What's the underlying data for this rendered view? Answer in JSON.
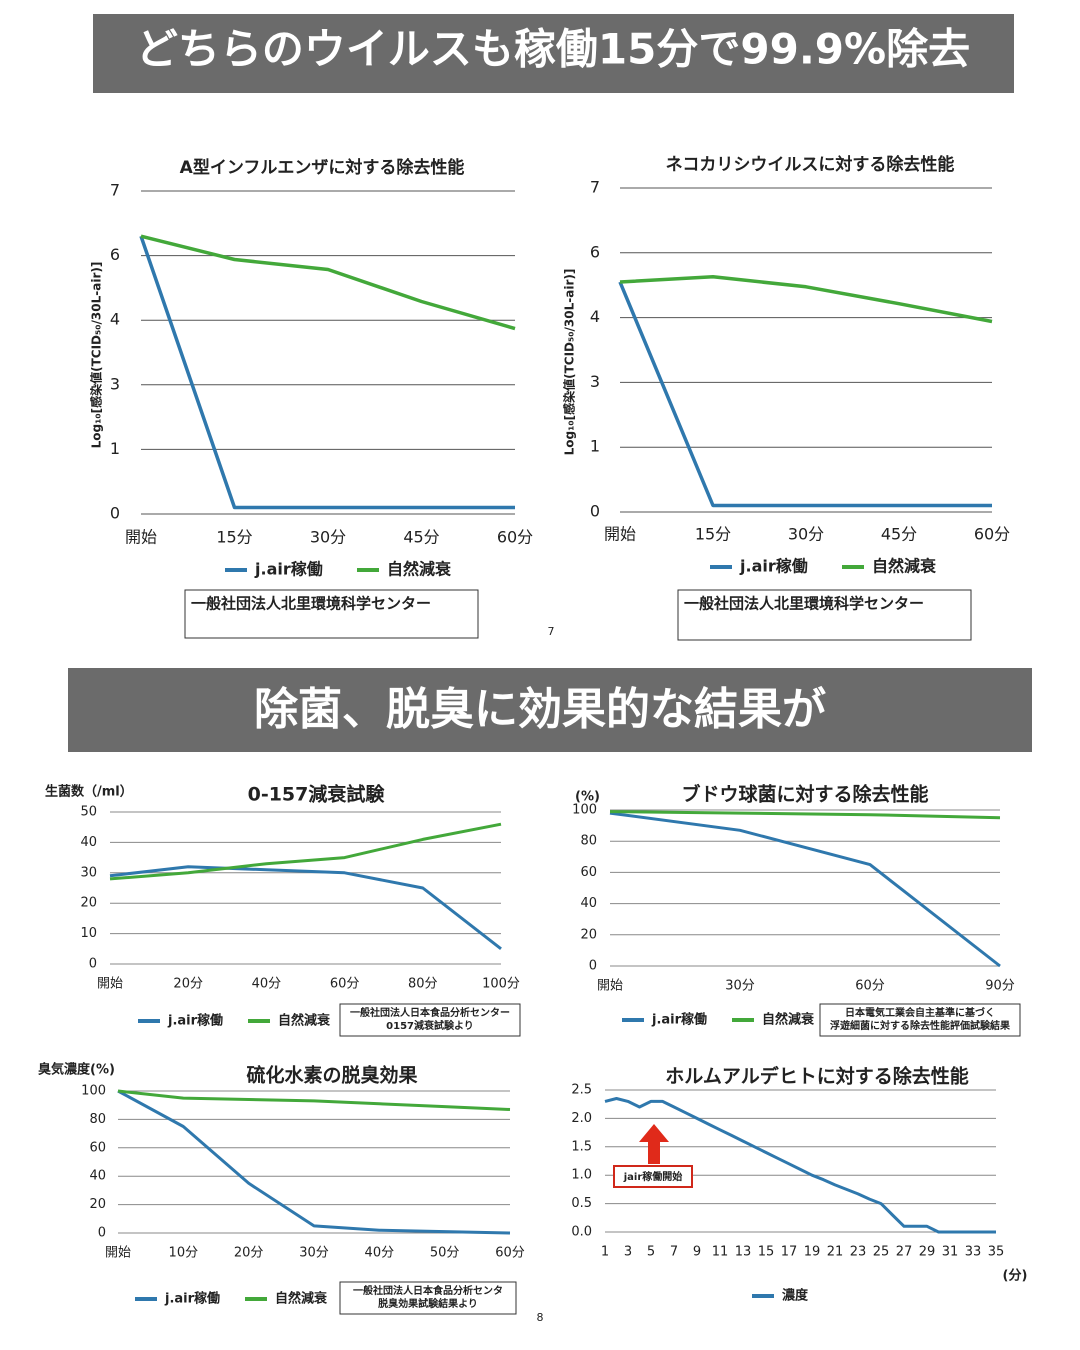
{
  "headers": [
    "どちらのウイルスも稼働15分で99.9%除去",
    "除菌、脱臭に効果的な結果が"
  ],
  "page_numbers": [
    "7",
    "8"
  ],
  "chart_data": [
    {
      "type": "line",
      "title": "A型インフルエンザに対する除去性能",
      "y_label": "Log₁₀[感染値(TCID₅₀/30L-air)]",
      "categories": [
        "開始",
        "15分",
        "30分",
        "45分",
        "60分"
      ],
      "series": [
        {
          "name": "j.air稼働",
          "color": "#2f78ad",
          "values": [
            6.3,
            0.1,
            0.1,
            0.1,
            0.1
          ]
        },
        {
          "name": "自然減衰",
          "color": "#43a83a",
          "values": [
            6.3,
            5.88,
            5.57,
            4.58,
            3.87
          ]
        }
      ],
      "ylim": [
        0,
        7
      ],
      "yticks": [
        0,
        1,
        3,
        4,
        6,
        7
      ],
      "grid": true,
      "legend": "bottom",
      "source": [
        "一般社団法人北里環境科学センター"
      ]
    },
    {
      "type": "line",
      "title": "ネコカリシウイルスに対する除去性能",
      "y_label": "Log₁₀[感染値(TCID₅₀/30L-air)]",
      "categories": [
        "開始",
        "15分",
        "30分",
        "45分",
        "60分"
      ],
      "series": [
        {
          "name": "j.air稼働",
          "color": "#2f78ad",
          "values": [
            5.1,
            0.1,
            0.1,
            0.1,
            0.1
          ]
        },
        {
          "name": "自然減衰",
          "color": "#43a83a",
          "values": [
            5.1,
            5.26,
            4.95,
            4.43,
            3.94
          ]
        }
      ],
      "ylim": [
        0,
        7
      ],
      "yticks": [
        0,
        1,
        3,
        4,
        6,
        7
      ],
      "grid": true,
      "legend": "bottom",
      "source": [
        "一般社団法人北里環境科学センター"
      ]
    },
    {
      "type": "line",
      "title": "0-157減衰試験",
      "y_label": "生菌数（/ml）",
      "categories": [
        "開始",
        "20分",
        "40分",
        "60分",
        "80分",
        "100分"
      ],
      "series": [
        {
          "name": "j.air稼働",
          "color": "#2f78ad",
          "values": [
            29,
            32,
            31,
            30,
            25,
            5
          ]
        },
        {
          "name": "自然減衰",
          "color": "#43a83a",
          "values": [
            28,
            30,
            33,
            35,
            41,
            46
          ]
        }
      ],
      "ylim": [
        0,
        50
      ],
      "yticks": [
        0,
        10,
        20,
        30,
        40,
        50
      ],
      "grid": true,
      "legend": "bottom",
      "source": [
        "一般社団法人日本食品分析センター",
        "0157減衰試験より"
      ]
    },
    {
      "type": "line",
      "title": "ブドウ球菌に対する除去性能",
      "y_label": "(%)",
      "categories": [
        "開始",
        "30分",
        "60分",
        "90分"
      ],
      "series": [
        {
          "name": "j.air稼働",
          "color": "#2f78ad",
          "values": [
            98,
            87,
            65,
            0
          ]
        },
        {
          "name": "自然減衰",
          "color": "#43a83a",
          "values": [
            99,
            98,
            97,
            95
          ]
        }
      ],
      "ylim": [
        0,
        100
      ],
      "yticks": [
        0,
        20,
        40,
        60,
        80,
        100
      ],
      "grid": true,
      "legend": "bottom",
      "source": [
        "日本電気工業会自主基準に基づく",
        "浮遊細菌に対する除去性能評価試験結果"
      ]
    },
    {
      "type": "line",
      "title": "硫化水素の脱臭効果",
      "y_label": "臭気濃度(%)",
      "categories": [
        "開始",
        "10分",
        "20分",
        "30分",
        "40分",
        "50分",
        "60分"
      ],
      "series": [
        {
          "name": "j.air稼働",
          "color": "#2f78ad",
          "values": [
            100,
            75,
            35,
            5,
            2,
            1,
            0
          ]
        },
        {
          "name": "自然減衰",
          "color": "#43a83a",
          "values": [
            100,
            95,
            94,
            93,
            91,
            89,
            87
          ]
        }
      ],
      "ylim": [
        0,
        100
      ],
      "yticks": [
        0,
        20,
        40,
        60,
        80,
        100
      ],
      "grid": true,
      "legend": "bottom",
      "source": [
        "一般社団法人日本食品分析センタ",
        "脱臭効果試験結果より"
      ]
    },
    {
      "type": "line",
      "title": "ホルムアルデヒトに対する除去性能",
      "x_unit": "(分)",
      "x": [
        1,
        2,
        3,
        4,
        5,
        6,
        7,
        8,
        9,
        10,
        11,
        12,
        13,
        14,
        15,
        16,
        17,
        18,
        19,
        20,
        21,
        22,
        23,
        24,
        25,
        26,
        27,
        28,
        29,
        30,
        31,
        32,
        33,
        34,
        35
      ],
      "series": [
        {
          "name": "濃度",
          "color": "#2f78ad",
          "values": [
            2.3,
            2.35,
            2.3,
            2.2,
            2.3,
            2.3,
            2.2,
            2.1,
            2.0,
            1.9,
            1.8,
            1.7,
            1.6,
            1.5,
            1.4,
            1.3,
            1.2,
            1.1,
            1.0,
            0.92,
            0.83,
            0.75,
            0.67,
            0.58,
            0.5,
            0.3,
            0.1,
            0.1,
            0.1,
            0.0,
            0.0,
            0.0,
            0.0,
            0.0,
            0.0
          ]
        }
      ],
      "xlim": [
        1,
        35
      ],
      "xticks": [
        1,
        3,
        5,
        7,
        9,
        11,
        13,
        15,
        17,
        19,
        21,
        23,
        25,
        27,
        29,
        31,
        33,
        35
      ],
      "ylim": [
        0,
        2.5
      ],
      "yticks": [
        {
          "value": 0,
          "label": "0.0"
        },
        {
          "value": 0.5,
          "label": "0.5"
        },
        {
          "value": 1,
          "label": "1.0"
        },
        {
          "value": 1.5,
          "label": "1.5"
        },
        {
          "value": 2,
          "label": "2.0"
        },
        {
          "value": 2.5,
          "label": "2.5"
        }
      ],
      "grid": true,
      "legend": "bottom",
      "annotation": "jair稼働開始"
    }
  ]
}
